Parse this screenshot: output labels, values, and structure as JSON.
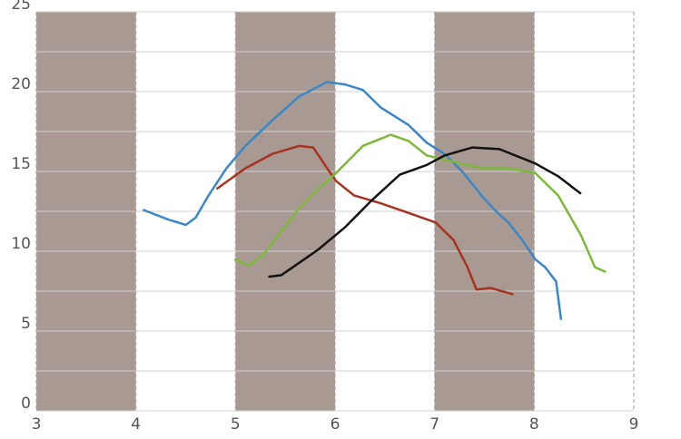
{
  "chart_data": {
    "type": "line",
    "xlim": [
      3,
      9
    ],
    "xticks": [
      3,
      4,
      5,
      6,
      7,
      8,
      9
    ],
    "ylim": [
      0,
      25
    ],
    "yticks": [
      0,
      5,
      10,
      15,
      20,
      25
    ],
    "minor_yticks": [
      2.5,
      7.5,
      12.5,
      17.5,
      22.5
    ],
    "grid": true,
    "bands": [
      [
        3,
        4
      ],
      [
        5,
        6
      ],
      [
        7,
        8
      ]
    ],
    "band_color": "#a89a92",
    "series": [
      {
        "color": "#3a87c8",
        "x": [
          4.07,
          4.32,
          4.5,
          4.6,
          4.73,
          4.91,
          5.1,
          5.37,
          5.64,
          5.92,
          6.1,
          6.28,
          6.46,
          6.74,
          6.92,
          7.1,
          7.29,
          7.47,
          7.6,
          7.74,
          7.88,
          8.01,
          8.11,
          8.22,
          8.27
        ],
        "values": [
          12.6,
          12.0,
          11.65,
          12.1,
          13.5,
          15.2,
          16.6,
          18.2,
          19.7,
          20.6,
          20.45,
          20.1,
          19.0,
          17.9,
          16.8,
          16.1,
          14.9,
          13.5,
          12.6,
          11.8,
          10.7,
          9.5,
          9.0,
          8.1,
          5.7
        ]
      },
      {
        "color": "#a8321e",
        "x": [
          4.81,
          5.1,
          5.37,
          5.64,
          5.78,
          5.92,
          6.01,
          6.19,
          6.46,
          6.74,
          7.01,
          7.19,
          7.33,
          7.42,
          7.56,
          7.79
        ],
        "values": [
          13.9,
          15.2,
          16.1,
          16.6,
          16.5,
          15.2,
          14.4,
          13.5,
          13.0,
          12.4,
          11.8,
          10.7,
          9.0,
          7.6,
          7.7,
          7.3
        ]
      },
      {
        "color": "#7cb83a",
        "x": [
          4.99,
          5.14,
          5.28,
          5.46,
          5.64,
          5.83,
          6.01,
          6.28,
          6.56,
          6.74,
          6.92,
          7.19,
          7.47,
          7.74,
          8.01,
          8.24,
          8.47,
          8.61,
          8.72
        ],
        "values": [
          9.5,
          9.1,
          9.8,
          11.25,
          12.7,
          13.9,
          14.9,
          16.6,
          17.3,
          16.9,
          16.0,
          15.6,
          15.2,
          15.2,
          14.9,
          13.5,
          11.0,
          9.0,
          8.7
        ]
      },
      {
        "color": "#111111",
        "x": [
          5.33,
          5.46,
          5.6,
          5.83,
          6.1,
          6.37,
          6.65,
          6.92,
          7.1,
          7.38,
          7.65,
          8.01,
          8.24,
          8.47
        ],
        "values": [
          8.4,
          8.5,
          9.1,
          10.1,
          11.5,
          13.2,
          14.8,
          15.4,
          16.0,
          16.5,
          16.4,
          15.5,
          14.7,
          13.6
        ]
      }
    ]
  }
}
